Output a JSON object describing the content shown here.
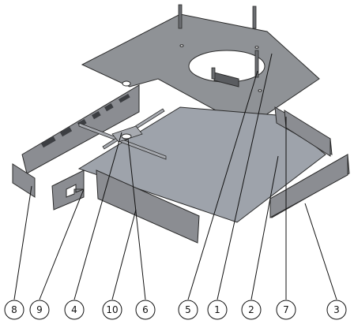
{
  "balloons": [
    {
      "id": "8",
      "label": "8"
    },
    {
      "id": "9",
      "label": "9"
    },
    {
      "id": "4",
      "label": "4"
    },
    {
      "id": "10",
      "label": "10"
    },
    {
      "id": "6",
      "label": "6"
    },
    {
      "id": "5",
      "label": "5"
    },
    {
      "id": "1",
      "label": "1"
    },
    {
      "id": "2",
      "label": "2"
    },
    {
      "id": "7",
      "label": "7"
    },
    {
      "id": "3",
      "label": "3"
    }
  ]
}
